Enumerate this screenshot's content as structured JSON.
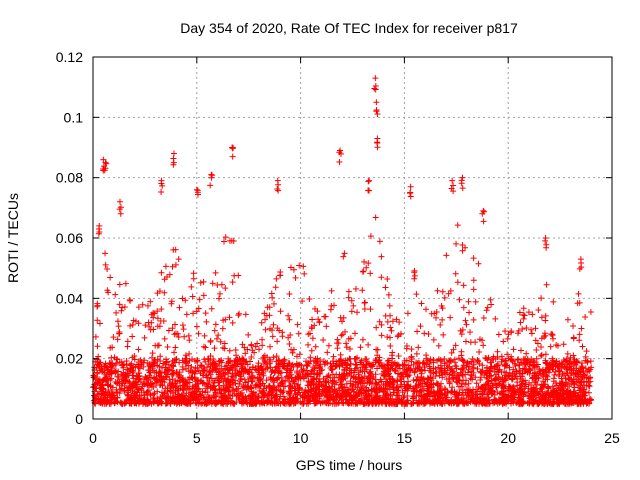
{
  "chart_data": {
    "type": "scatter",
    "title": "Day 354 of 2020, Rate Of TEC Index for receiver p817",
    "xlabel": "GPS time / hours",
    "ylabel": "ROTI / TECUs",
    "xlim": [
      0,
      25
    ],
    "ylim": [
      0,
      0.12
    ],
    "x_ticks": [
      0,
      5,
      10,
      15,
      20,
      25
    ],
    "x_tick_labels": [
      "0",
      "5",
      "10",
      "15",
      "20",
      "25"
    ],
    "y_ticks": [
      0,
      0.02,
      0.04,
      0.06,
      0.08,
      0.1,
      0.12
    ],
    "y_tick_labels": [
      "0",
      "0.02",
      "0.04",
      "0.06",
      "0.08",
      "0.1",
      "0.12"
    ],
    "grid": true,
    "marker": "+",
    "color": "#ff0000",
    "x_range_of_data": [
      0,
      24
    ],
    "baseline_band": [
      0.005,
      0.02
    ],
    "series": [
      {
        "name": "ROTI",
        "notable_points": [
          {
            "x": 0.5,
            "y": 0.086
          },
          {
            "x": 0.6,
            "y": 0.085
          },
          {
            "x": 0.3,
            "y": 0.064
          },
          {
            "x": 1.3,
            "y": 0.072
          },
          {
            "x": 3.3,
            "y": 0.079
          },
          {
            "x": 3.9,
            "y": 0.088
          },
          {
            "x": 5.0,
            "y": 0.076
          },
          {
            "x": 5.7,
            "y": 0.081
          },
          {
            "x": 6.7,
            "y": 0.09
          },
          {
            "x": 8.9,
            "y": 0.079
          },
          {
            "x": 11.9,
            "y": 0.089
          },
          {
            "x": 13.3,
            "y": 0.079
          },
          {
            "x": 13.6,
            "y": 0.113
          },
          {
            "x": 13.65,
            "y": 0.105
          },
          {
            "x": 13.7,
            "y": 0.093
          },
          {
            "x": 15.3,
            "y": 0.077
          },
          {
            "x": 17.3,
            "y": 0.079
          },
          {
            "x": 17.8,
            "y": 0.08
          },
          {
            "x": 18.8,
            "y": 0.069
          },
          {
            "x": 21.8,
            "y": 0.06
          },
          {
            "x": 23.5,
            "y": 0.053
          }
        ],
        "activity_envelope": [
          {
            "x": 0,
            "ymax": 0.03
          },
          {
            "x": 0.5,
            "ymax": 0.06
          },
          {
            "x": 1,
            "ymax": 0.04
          },
          {
            "x": 1.5,
            "ymax": 0.05
          },
          {
            "x": 2,
            "ymax": 0.035
          },
          {
            "x": 2.5,
            "ymax": 0.045
          },
          {
            "x": 3,
            "ymax": 0.04
          },
          {
            "x": 3.5,
            "ymax": 0.055
          },
          {
            "x": 4,
            "ymax": 0.06
          },
          {
            "x": 4.5,
            "ymax": 0.045
          },
          {
            "x": 5,
            "ymax": 0.055
          },
          {
            "x": 5.5,
            "ymax": 0.05
          },
          {
            "x": 6,
            "ymax": 0.05
          },
          {
            "x": 6.5,
            "ymax": 0.065
          },
          {
            "x": 7,
            "ymax": 0.06
          },
          {
            "x": 7.5,
            "ymax": 0.035
          },
          {
            "x": 8,
            "ymax": 0.03
          },
          {
            "x": 8.5,
            "ymax": 0.04
          },
          {
            "x": 9,
            "ymax": 0.055
          },
          {
            "x": 9.5,
            "ymax": 0.05
          },
          {
            "x": 10,
            "ymax": 0.055
          },
          {
            "x": 10.5,
            "ymax": 0.045
          },
          {
            "x": 11,
            "ymax": 0.035
          },
          {
            "x": 11.5,
            "ymax": 0.045
          },
          {
            "x": 12,
            "ymax": 0.06
          },
          {
            "x": 12.5,
            "ymax": 0.04
          },
          {
            "x": 13,
            "ymax": 0.05
          },
          {
            "x": 13.5,
            "ymax": 0.07
          },
          {
            "x": 14,
            "ymax": 0.06
          },
          {
            "x": 14.5,
            "ymax": 0.035
          },
          {
            "x": 15,
            "ymax": 0.03
          },
          {
            "x": 15.5,
            "ymax": 0.055
          },
          {
            "x": 16,
            "ymax": 0.045
          },
          {
            "x": 16.5,
            "ymax": 0.04
          },
          {
            "x": 17,
            "ymax": 0.06
          },
          {
            "x": 17.5,
            "ymax": 0.065
          },
          {
            "x": 18,
            "ymax": 0.06
          },
          {
            "x": 18.5,
            "ymax": 0.055
          },
          {
            "x": 19,
            "ymax": 0.05
          },
          {
            "x": 19.5,
            "ymax": 0.03
          },
          {
            "x": 20,
            "ymax": 0.03
          },
          {
            "x": 20.5,
            "ymax": 0.035
          },
          {
            "x": 21,
            "ymax": 0.04
          },
          {
            "x": 21.5,
            "ymax": 0.045
          },
          {
            "x": 22,
            "ymax": 0.045
          },
          {
            "x": 22.5,
            "ymax": 0.03
          },
          {
            "x": 23,
            "ymax": 0.035
          },
          {
            "x": 23.5,
            "ymax": 0.045
          },
          {
            "x": 24,
            "ymax": 0.04
          }
        ]
      }
    ]
  }
}
